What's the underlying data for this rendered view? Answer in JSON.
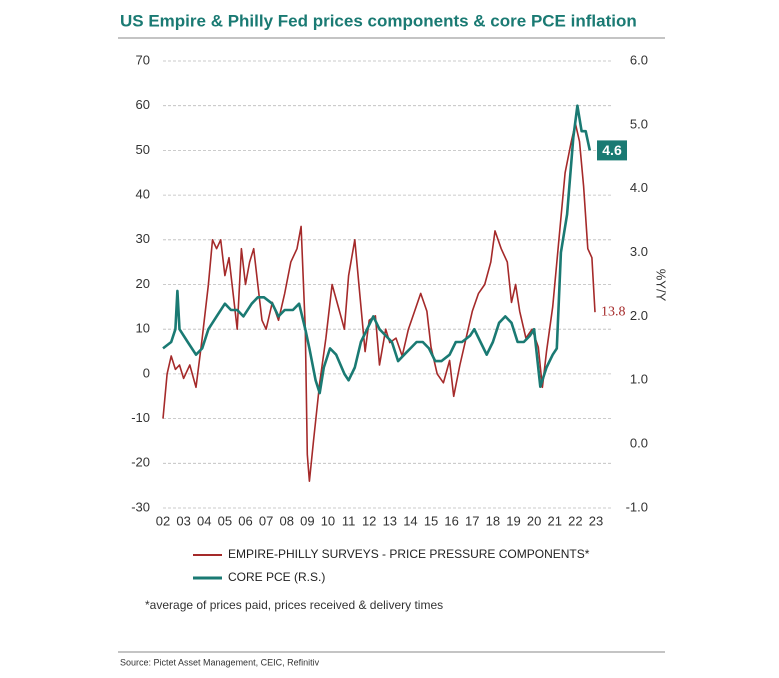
{
  "chart_data": {
    "type": "line",
    "title": "US Empire & Philly Fed prices components & core PCE inflation",
    "y2_label": "%Y/Y",
    "footnote": "*average of prices paid, prices received & delivery times",
    "source": "Source: Pictet Asset Management, CEIC, Refinitiv",
    "xlim": [
      2002,
      2023
    ],
    "xticks": [
      {
        "value": 2002,
        "label": "02"
      },
      {
        "value": 2003,
        "label": "03"
      },
      {
        "value": 2004,
        "label": "04"
      },
      {
        "value": 2005,
        "label": "05"
      },
      {
        "value": 2006,
        "label": "06"
      },
      {
        "value": 2007,
        "label": "07"
      },
      {
        "value": 2008,
        "label": "08"
      },
      {
        "value": 2009,
        "label": "09"
      },
      {
        "value": 2010,
        "label": "10"
      },
      {
        "value": 2011,
        "label": "11"
      },
      {
        "value": 2012,
        "label": "12"
      },
      {
        "value": 2013,
        "label": "13"
      },
      {
        "value": 2014,
        "label": "14"
      },
      {
        "value": 2015,
        "label": "15"
      },
      {
        "value": 2016,
        "label": "16"
      },
      {
        "value": 2017,
        "label": "17"
      },
      {
        "value": 2018,
        "label": "18"
      },
      {
        "value": 2019,
        "label": "19"
      },
      {
        "value": 2020,
        "label": "20"
      },
      {
        "value": 2021,
        "label": "21"
      },
      {
        "value": 2022,
        "label": "22"
      },
      {
        "value": 2023,
        "label": "23"
      }
    ],
    "ylim": [
      -30,
      70
    ],
    "yticks": [
      -30,
      -20,
      -10,
      0,
      10,
      20,
      30,
      40,
      50,
      60,
      70
    ],
    "y2lim": [
      -1,
      6
    ],
    "y2ticks": [
      {
        "value": -1,
        "label": "-1.0"
      },
      {
        "value": 0,
        "label": "0.0"
      },
      {
        "value": 1,
        "label": "1.0"
      },
      {
        "value": 2,
        "label": "2.0"
      },
      {
        "value": 3,
        "label": "3.0"
      },
      {
        "value": 4,
        "label": "4.0"
      },
      {
        "value": 5,
        "label": "5.0"
      },
      {
        "value": 6,
        "label": "6.0"
      }
    ],
    "grid": true,
    "series": [
      {
        "name": "EMPIRE-PHILLY SURVEYS - PRICE PRESSURE COMPONENTS*",
        "color": "#a52a2a",
        "axis": "y",
        "end_label": "13.8",
        "x": [
          2002.0,
          2002.2,
          2002.4,
          2002.6,
          2002.8,
          2003.0,
          2003.3,
          2003.6,
          2003.9,
          2004.2,
          2004.4,
          2004.6,
          2004.8,
          2005.0,
          2005.2,
          2005.4,
          2005.6,
          2005.8,
          2006.0,
          2006.2,
          2006.4,
          2006.6,
          2006.8,
          2007.0,
          2007.3,
          2007.6,
          2007.9,
          2008.2,
          2008.5,
          2008.7,
          2008.9,
          2009.0,
          2009.1,
          2009.3,
          2009.6,
          2009.9,
          2010.2,
          2010.5,
          2010.8,
          2011.0,
          2011.3,
          2011.5,
          2011.8,
          2012.0,
          2012.3,
          2012.5,
          2012.8,
          2013.0,
          2013.3,
          2013.6,
          2013.9,
          2014.2,
          2014.5,
          2014.8,
          2015.0,
          2015.3,
          2015.6,
          2015.9,
          2016.1,
          2016.4,
          2016.7,
          2017.0,
          2017.3,
          2017.6,
          2017.9,
          2018.1,
          2018.4,
          2018.7,
          2018.9,
          2019.1,
          2019.3,
          2019.6,
          2019.9,
          2020.2,
          2020.4,
          2020.6,
          2020.9,
          2021.2,
          2021.5,
          2021.8,
          2022.0,
          2022.2,
          2022.4,
          2022.6,
          2022.8,
          2022.95
        ],
        "values": [
          -10,
          0,
          4,
          1,
          2,
          -1,
          2,
          -3,
          8,
          20,
          30,
          28,
          30,
          22,
          26,
          18,
          10,
          28,
          20,
          25,
          28,
          20,
          12,
          10,
          16,
          12,
          18,
          25,
          28,
          33,
          10,
          -18,
          -24,
          -15,
          -2,
          8,
          20,
          15,
          10,
          22,
          30,
          20,
          5,
          12,
          13,
          2,
          10,
          7,
          8,
          4,
          10,
          14,
          18,
          14,
          6,
          0,
          -2,
          3,
          -5,
          2,
          8,
          14,
          18,
          20,
          25,
          32,
          28,
          25,
          16,
          20,
          14,
          8,
          10,
          6,
          -3,
          5,
          15,
          30,
          45,
          52,
          56,
          52,
          42,
          28,
          26,
          13.8
        ]
      },
      {
        "name": "CORE PCE (R.S.)",
        "color": "#1a7a73",
        "axis": "y2",
        "end_label": "4.6",
        "x": [
          2002.0,
          2002.4,
          2002.6,
          2002.7,
          2002.8,
          2003.2,
          2003.6,
          2003.9,
          2004.2,
          2004.6,
          2005.0,
          2005.3,
          2005.6,
          2005.9,
          2006.3,
          2006.6,
          2006.9,
          2007.3,
          2007.6,
          2007.9,
          2008.3,
          2008.6,
          2008.9,
          2009.1,
          2009.4,
          2009.6,
          2009.8,
          2010.1,
          2010.4,
          2010.8,
          2011.0,
          2011.3,
          2011.6,
          2011.9,
          2012.2,
          2012.5,
          2012.8,
          2013.1,
          2013.4,
          2013.7,
          2014.0,
          2014.3,
          2014.6,
          2014.9,
          2015.2,
          2015.5,
          2015.9,
          2016.2,
          2016.5,
          2016.9,
          2017.1,
          2017.4,
          2017.7,
          2018.0,
          2018.3,
          2018.6,
          2018.9,
          2019.2,
          2019.5,
          2019.8,
          2020.0,
          2020.3,
          2020.6,
          2020.9,
          2021.1,
          2021.3,
          2021.6,
          2021.9,
          2022.1,
          2022.3,
          2022.5,
          2022.7
        ],
        "values": [
          1.5,
          1.6,
          1.8,
          2.4,
          1.8,
          1.6,
          1.4,
          1.5,
          1.8,
          2.0,
          2.2,
          2.1,
          2.1,
          2.0,
          2.2,
          2.3,
          2.3,
          2.2,
          2.0,
          2.1,
          2.1,
          2.2,
          1.8,
          1.5,
          1.0,
          0.8,
          1.2,
          1.5,
          1.4,
          1.1,
          1.0,
          1.2,
          1.6,
          1.8,
          2.0,
          1.8,
          1.7,
          1.6,
          1.3,
          1.4,
          1.5,
          1.6,
          1.6,
          1.5,
          1.3,
          1.3,
          1.4,
          1.6,
          1.6,
          1.7,
          1.8,
          1.6,
          1.4,
          1.6,
          1.9,
          2.0,
          1.9,
          1.6,
          1.6,
          1.7,
          1.8,
          0.9,
          1.2,
          1.4,
          1.5,
          3.0,
          3.6,
          4.8,
          5.3,
          4.9,
          4.9,
          4.6
        ]
      }
    ]
  }
}
